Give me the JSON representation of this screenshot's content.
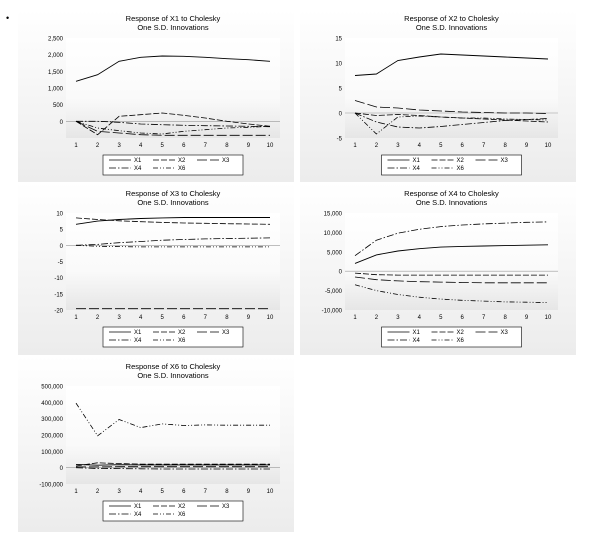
{
  "bullet": "•",
  "legend_labels": [
    "X1",
    "X2",
    "X3",
    "X4",
    "X6"
  ],
  "chart_data": [
    {
      "type": "line",
      "title": "Response of X1 to Cholesky",
      "subtitle": "One S.D. Innovations",
      "x": [
        1,
        2,
        3,
        4,
        5,
        6,
        7,
        8,
        9,
        10
      ],
      "ylim": [
        -500,
        2500
      ],
      "yticks": [
        -500,
        0,
        500,
        1000,
        1500,
        2000,
        2500
      ],
      "ytick_labels": [
        "",
        "0",
        "500",
        "1,000",
        "1,500",
        "2,000",
        "2,500"
      ],
      "series": [
        {
          "name": "X1",
          "values": [
            1200,
            1400,
            1800,
            1920,
            1960,
            1950,
            1920,
            1880,
            1850,
            1800
          ]
        },
        {
          "name": "X2",
          "values": [
            0,
            -400,
            150,
            200,
            250,
            180,
            100,
            0,
            -80,
            -150
          ]
        },
        {
          "name": "X3",
          "values": [
            0,
            -300,
            -350,
            -400,
            -420,
            -420,
            -420,
            -420,
            -420,
            -420
          ]
        },
        {
          "name": "X4",
          "values": [
            0,
            0,
            -30,
            -80,
            -100,
            -120,
            -130,
            -140,
            -150,
            -160
          ]
        },
        {
          "name": "X6",
          "values": [
            0,
            -200,
            -280,
            -350,
            -380,
            -300,
            -250,
            -200,
            -180,
            -150
          ]
        }
      ]
    },
    {
      "type": "line",
      "title": "Response of X2 to Cholesky",
      "subtitle": "One S.D. Innovations",
      "x": [
        1,
        2,
        3,
        4,
        5,
        6,
        7,
        8,
        9,
        10
      ],
      "ylim": [
        -5,
        15
      ],
      "yticks": [
        -5,
        0,
        5,
        10,
        15
      ],
      "ytick_labels": [
        "-5",
        "0",
        "5",
        "10",
        "15"
      ],
      "series": [
        {
          "name": "X1",
          "values": [
            7.5,
            7.8,
            10.5,
            11.2,
            11.8,
            11.6,
            11.4,
            11.2,
            11.0,
            10.8
          ]
        },
        {
          "name": "X2",
          "values": [
            0,
            -0.5,
            -0.3,
            -0.5,
            -0.8,
            -1.0,
            -1.2,
            -1.4,
            -1.6,
            -1.8
          ]
        },
        {
          "name": "X3",
          "values": [
            2.5,
            1.2,
            1.0,
            0.6,
            0.4,
            0.2,
            0.1,
            0.0,
            0.0,
            -0.1
          ]
        },
        {
          "name": "X4",
          "values": [
            0,
            -1.8,
            -2.8,
            -3.0,
            -2.7,
            -2.3,
            -1.9,
            -1.5,
            -1.3,
            -1.1
          ]
        },
        {
          "name": "X6",
          "values": [
            0,
            -4.2,
            -0.8,
            -0.6,
            -0.8,
            -1.0,
            -1.0,
            -1.2,
            -1.3,
            -1.4
          ]
        }
      ]
    },
    {
      "type": "line",
      "title": "Response of X3 to Cholesky",
      "subtitle": "One S.D. Innovations",
      "x": [
        1,
        2,
        3,
        4,
        5,
        6,
        7,
        8,
        9,
        10
      ],
      "ylim": [
        -20,
        10
      ],
      "yticks": [
        -20,
        -15,
        -10,
        -5,
        0,
        5,
        10
      ],
      "ytick_labels": [
        "-20",
        "-15",
        "-10",
        "-5",
        "0",
        "5",
        "10"
      ],
      "series": [
        {
          "name": "X1",
          "values": [
            6.5,
            7.5,
            8.0,
            8.3,
            8.5,
            8.6,
            8.6,
            8.6,
            8.6,
            8.6
          ]
        },
        {
          "name": "X2",
          "values": [
            8.5,
            8.0,
            7.6,
            7.3,
            7.1,
            6.9,
            6.8,
            6.7,
            6.6,
            6.5
          ]
        },
        {
          "name": "X3",
          "values": [
            -19.6,
            -19.6,
            -19.6,
            -19.6,
            -19.6,
            -19.6,
            -19.6,
            -19.6,
            -19.6,
            -19.6
          ]
        },
        {
          "name": "X4",
          "values": [
            0,
            0.3,
            0.8,
            1.2,
            1.6,
            1.8,
            2.0,
            2.1,
            2.2,
            2.3
          ]
        },
        {
          "name": "X6",
          "values": [
            0,
            -0.3,
            -0.4,
            -0.5,
            -0.5,
            -0.5,
            -0.5,
            -0.5,
            -0.5,
            -0.5
          ]
        }
      ]
    },
    {
      "type": "line",
      "title": "Response of X4 to Cholesky",
      "subtitle": "One S.D. Innovations",
      "x": [
        1,
        2,
        3,
        4,
        5,
        6,
        7,
        8,
        9,
        10
      ],
      "ylim": [
        -10000,
        15000
      ],
      "yticks": [
        -10000,
        -5000,
        0,
        5000,
        10000,
        15000
      ],
      "ytick_labels": [
        "-10,000",
        "-5,000",
        "0",
        "5,000",
        "10,000",
        "15,000"
      ],
      "series": [
        {
          "name": "X1",
          "values": [
            2000,
            4200,
            5200,
            5800,
            6200,
            6400,
            6500,
            6600,
            6700,
            6800
          ]
        },
        {
          "name": "X2",
          "values": [
            -500,
            -900,
            -1000,
            -1000,
            -1000,
            -1000,
            -1000,
            -1000,
            -1000,
            -1000
          ]
        },
        {
          "name": "X3",
          "values": [
            -1500,
            -2200,
            -2500,
            -2700,
            -2800,
            -2900,
            -3000,
            -3000,
            -3000,
            -3000
          ]
        },
        {
          "name": "X4",
          "values": [
            4000,
            8000,
            9800,
            10800,
            11500,
            11900,
            12200,
            12400,
            12600,
            12700
          ]
        },
        {
          "name": "X6",
          "values": [
            -3500,
            -5000,
            -6000,
            -6700,
            -7200,
            -7500,
            -7700,
            -7900,
            -8000,
            -8100
          ]
        }
      ]
    },
    {
      "type": "line",
      "title": "Response of X6 to Cholesky",
      "subtitle": "One S.D. Innovations",
      "x": [
        1,
        2,
        3,
        4,
        5,
        6,
        7,
        8,
        9,
        10
      ],
      "ylim": [
        -100000,
        500000
      ],
      "yticks": [
        -100000,
        0,
        100000,
        200000,
        300000,
        400000,
        500000
      ],
      "ytick_labels": [
        "-100,000",
        "0",
        "100,000",
        "200,000",
        "300,000",
        "400,000",
        "500,000"
      ],
      "series": [
        {
          "name": "X1",
          "values": [
            20000,
            15000,
            18000,
            17000,
            17000,
            17000,
            17000,
            17000,
            17000,
            17000
          ]
        },
        {
          "name": "X2",
          "values": [
            10000,
            30000,
            25000,
            22000,
            22000,
            22000,
            22000,
            22000,
            22000,
            22000
          ]
        },
        {
          "name": "X3",
          "values": [
            5000,
            5000,
            6000,
            6000,
            6000,
            6000,
            6000,
            6000,
            6000,
            6000
          ]
        },
        {
          "name": "X4",
          "values": [
            0,
            -5000,
            -6000,
            -7000,
            -8000,
            -8000,
            -8000,
            -8000,
            -8000,
            -8000
          ]
        },
        {
          "name": "X6",
          "values": [
            395000,
            195000,
            295000,
            245000,
            268000,
            258000,
            262000,
            260000,
            260000,
            260000
          ]
        }
      ]
    }
  ]
}
